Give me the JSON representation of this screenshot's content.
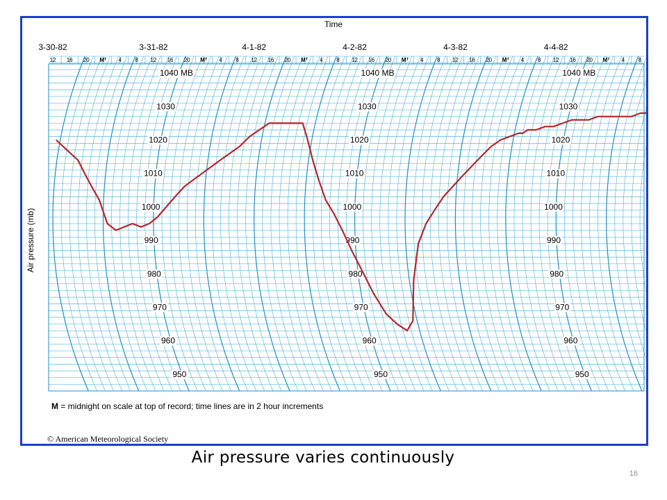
{
  "slide": {
    "caption": "Air pressure varies continuously",
    "page_number": "16"
  },
  "colors": {
    "border": "#1a3fd0",
    "grid": "#3aa8d8",
    "grid_bold": "#1f8fc4",
    "trace": "#b5252b",
    "text": "#000000"
  },
  "chart_data": {
    "type": "line",
    "title": "Time",
    "ylabel": "Air pressure (mb)",
    "dates": [
      "3-30-82",
      "3-31-82",
      "4-1-82",
      "4-2-82",
      "4-3-82",
      "4-4-82"
    ],
    "hour_tick_labels": [
      "12",
      "16",
      "20",
      "Mᵀ",
      "4",
      "8",
      "12",
      "16",
      "20",
      "Mᵀ",
      "4",
      "8",
      "12",
      "16",
      "20",
      "Mᵀ",
      "4",
      "8",
      "12",
      "16",
      "20",
      "Mᵀ",
      "4",
      "8",
      "12",
      "16",
      "20",
      "Mᵀ",
      "4",
      "8",
      "12",
      "16",
      "20",
      "Mᵀ",
      "4",
      "8",
      "12",
      "16",
      "20"
    ],
    "pressure_labels": [
      "1040 MB",
      "1030",
      "1020",
      "1010",
      "1000",
      "990",
      "980",
      "970",
      "960",
      "950"
    ],
    "ylim": [
      945,
      1045
    ],
    "xlim_hours": [
      -13,
      129
    ],
    "footnote_bold": "M",
    "footnote": " = midnight on scale at top of record;  time lines are in 2 hour increments",
    "credit": "© American Meteorological Society",
    "series": [
      {
        "x_hours_since_midnight_3_31_82": [
          -13,
          -11,
          -9,
          -7,
          -5,
          -3,
          -1,
          1,
          3,
          5,
          7,
          9,
          11,
          13,
          15,
          17,
          19,
          21,
          23,
          25,
          27,
          29,
          31,
          33,
          35,
          37,
          39,
          41,
          43,
          45,
          47,
          49,
          51,
          53,
          55,
          57,
          59,
          61,
          63,
          65,
          67,
          69,
          71,
          73,
          75,
          77,
          79,
          81,
          83,
          85,
          87,
          89,
          91,
          93,
          95,
          97,
          98,
          99,
          101,
          103,
          105,
          107,
          109,
          111,
          113,
          115,
          117,
          119,
          121,
          123,
          125,
          127,
          129
        ],
        "y_mb": [
          1020,
          1018,
          1016,
          1014,
          1010,
          1006,
          1002,
          995,
          993,
          994,
          995,
          994,
          995,
          997,
          1000,
          1003,
          1006,
          1008,
          1010,
          1012,
          1014,
          1016,
          1018,
          1021,
          1023,
          1025,
          1025,
          1025,
          1025,
          1025,
          1020,
          1014,
          1008,
          1002,
          998,
          993,
          987,
          981,
          974,
          968,
          965,
          963,
          966,
          978,
          989,
          995,
          999,
          1003,
          1006,
          1009,
          1012,
          1015,
          1018,
          1020,
          1021,
          1022,
          1022,
          1023,
          1023,
          1024,
          1024,
          1025,
          1026,
          1026,
          1026,
          1027,
          1027,
          1027,
          1027,
          1027,
          1028,
          1028,
          1029
        ]
      }
    ]
  }
}
